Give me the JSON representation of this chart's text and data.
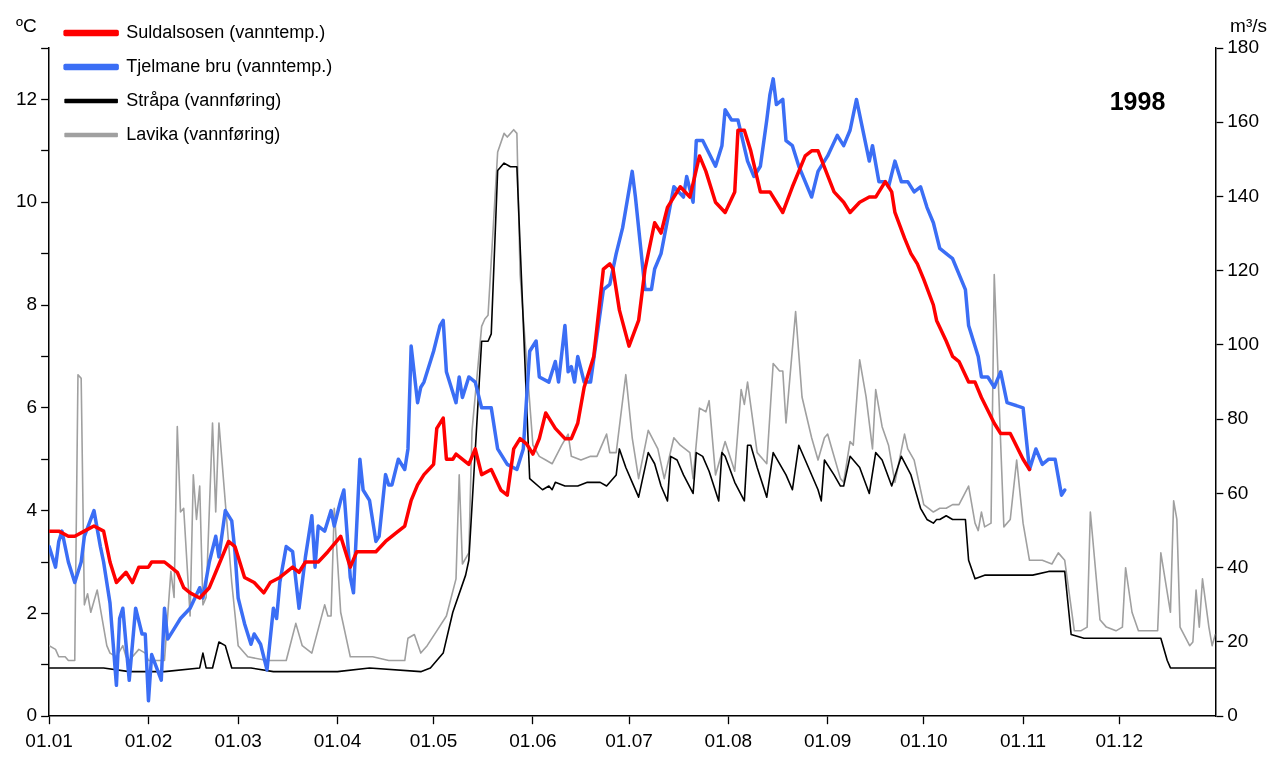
{
  "chart_data": {
    "type": "line",
    "ylabel": "ºC",
    "y2label": "m³/s",
    "annotations": [
      "1998"
    ],
    "legend": "top left",
    "marker": "none",
    "line_style": "solid",
    "grid": false,
    "xlim": [
      "--01-01",
      "--12-31"
    ],
    "xticks": [
      {
        "value": "--01-01",
        "label": "01.01"
      },
      {
        "value": "--02-01",
        "label": "01.02"
      },
      {
        "value": "--03-01",
        "label": "01.03"
      },
      {
        "value": "--04-01",
        "label": "01.04"
      },
      {
        "value": "--05-01",
        "label": "01.05"
      },
      {
        "value": "--06-01",
        "label": "01.06"
      },
      {
        "value": "--07-01",
        "label": "01.07"
      },
      {
        "value": "--08-01",
        "label": "01.08"
      },
      {
        "value": "--09-01",
        "label": "01.09"
      },
      {
        "value": "--10-01",
        "label": "01.10"
      },
      {
        "value": "--11-01",
        "label": "01.11"
      },
      {
        "value": "--12-01",
        "label": "01.12"
      }
    ],
    "ylim": [
      0,
      13
    ],
    "yticks": [
      0,
      {
        "value": 1,
        "label": null
      },
      2,
      {
        "value": 3,
        "label": null
      },
      4,
      {
        "value": 5,
        "label": null
      },
      6,
      {
        "value": 7,
        "label": null
      },
      8,
      {
        "value": 9,
        "label": null
      },
      10,
      {
        "value": 11,
        "label": null
      },
      12,
      {
        "value": 13,
        "label": null
      }
    ],
    "y2lim": [
      0,
      180
    ],
    "y2ticks": [
      0,
      20,
      40,
      60,
      80,
      100,
      120,
      140,
      160,
      180
    ],
    "series": [
      {
        "name": "Suldalsosen (vanntemp.)",
        "color": "#ff0000",
        "x": [
          "--01-01",
          "--01-04",
          "--01-07",
          "--01-09",
          "--01-12",
          "--01-15",
          "--01-18",
          "--01-20",
          "--01-22",
          "--01-25",
          "--01-27",
          "--01-29",
          "--02-01",
          "--02-02",
          "--02-06",
          "--02-08",
          "--02-10",
          "--02-12",
          "--02-14",
          "--02-17",
          "--02-20",
          "--02-22",
          "--02-26",
          "--02-28",
          "--03-03",
          "--03-06",
          "--03-09",
          "--03-11",
          "--03-14",
          "--03-18",
          "--03-20",
          "--03-22",
          "--03-26",
          "--03-29",
          "--04-02",
          "--04-05",
          "--04-07",
          "--04-11",
          "--04-13",
          "--04-16",
          "--04-20",
          "--04-22",
          "--04-24",
          "--04-26",
          "--04-28",
          "--05-01",
          "--05-02",
          "--05-04",
          "--05-05",
          "--05-07",
          "--05-08",
          "--05-12",
          "--05-14",
          "--05-16",
          "--05-19",
          "--05-22",
          "--05-24",
          "--05-26",
          "--05-28",
          "--05-30",
          "--06-01",
          "--06-03",
          "--06-05",
          "--06-08",
          "--06-11",
          "--06-13",
          "--06-15",
          "--06-17",
          "--06-20",
          "--06-23",
          "--06-25",
          "--06-26",
          "--06-28",
          "--07-01",
          "--07-04",
          "--07-06",
          "--07-09",
          "--07-11",
          "--07-13",
          "--07-17",
          "--07-20",
          "--07-23",
          "--07-25",
          "--07-28",
          "--07-31",
          "--08-03",
          "--08-04",
          "--08-06",
          "--08-08",
          "--08-11",
          "--08-14",
          "--08-18",
          "--08-21",
          "--08-25",
          "--08-27",
          "--08-29",
          "--09-03",
          "--09-06",
          "--09-08",
          "--09-11",
          "--09-14",
          "--09-16",
          "--09-17",
          "--09-19",
          "--09-21",
          "--09-22",
          "--09-25",
          "--09-27",
          "--09-29",
          "--10-01",
          "--10-04",
          "--10-05",
          "--10-08",
          "--10-10",
          "--10-12",
          "--10-15",
          "--10-17",
          "--10-19",
          "--10-23",
          "--10-25",
          "--10-28",
          "--11-01",
          "--11-03"
        ],
        "values": [
          3.6,
          3.6,
          3.5,
          3.5,
          3.6,
          3.7,
          3.6,
          3.0,
          2.6,
          2.8,
          2.6,
          2.9,
          2.9,
          3.0,
          3.0,
          2.9,
          2.8,
          2.5,
          2.4,
          2.3,
          2.5,
          2.8,
          3.4,
          3.3,
          2.7,
          2.6,
          2.4,
          2.6,
          2.7,
          2.9,
          2.8,
          3.0,
          3.0,
          3.2,
          3.5,
          2.9,
          3.2,
          3.2,
          3.2,
          3.4,
          3.6,
          3.7,
          4.2,
          4.5,
          4.7,
          4.9,
          5.6,
          5.8,
          5.0,
          5.0,
          5.1,
          4.9,
          5.2,
          4.7,
          4.8,
          4.4,
          4.3,
          5.2,
          5.4,
          5.3,
          5.1,
          5.4,
          5.9,
          5.6,
          5.4,
          5.4,
          5.7,
          6.4,
          7.0,
          8.7,
          8.8,
          8.7,
          7.9,
          7.2,
          7.7,
          8.7,
          9.6,
          9.4,
          9.9,
          10.3,
          10.1,
          10.9,
          10.6,
          10.0,
          9.8,
          10.2,
          11.4,
          11.4,
          11.0,
          10.2,
          10.2,
          9.8,
          10.3,
          10.9,
          11.0,
          11.0,
          10.2,
          10.0,
          9.8,
          10.0,
          10.1,
          10.1,
          10.2,
          10.4,
          10.2,
          9.8,
          9.3,
          9.0,
          8.8,
          8.5,
          8.0,
          7.7,
          7.3,
          7.0,
          6.9,
          6.5,
          6.5,
          6.2,
          5.7,
          5.5,
          5.5,
          5.0,
          4.8
        ]
      },
      {
        "name": "Tjelmane bru (vanntemp.)",
        "color": "#3b6ef5",
        "x": [
          "--01-01",
          "--01-03",
          "--01-04",
          "--01-05",
          "--01-07",
          "--01-09",
          "--01-11",
          "--01-12",
          "--01-15",
          "--01-17",
          "--01-18",
          "--01-20",
          "--01-22",
          "--01-23",
          "--01-24",
          "--01-26",
          "--01-28",
          "--01-30",
          "--01-31",
          "--02-01",
          "--02-02",
          "--02-05",
          "--02-06",
          "--02-07",
          "--02-09",
          "--02-11",
          "--02-14",
          "--02-17",
          "--02-18",
          "--02-20",
          "--02-22",
          "--02-23",
          "--02-25",
          "--02-27",
          "--02-28",
          "--03-01",
          "--03-03",
          "--03-05",
          "--03-06",
          "--03-08",
          "--03-10",
          "--03-12",
          "--03-13",
          "--03-14",
          "--03-16",
          "--03-18",
          "--03-20",
          "--03-22",
          "--03-24",
          "--03-25",
          "--03-26",
          "--03-28",
          "--03-30",
          "--03-31",
          "--04-02",
          "--04-03",
          "--04-05",
          "--04-06",
          "--04-08",
          "--04-09",
          "--04-11",
          "--04-13",
          "--04-14",
          "--04-16",
          "--04-17",
          "--04-18",
          "--04-20",
          "--04-22",
          "--04-23",
          "--04-24",
          "--04-26",
          "--04-27",
          "--04-28",
          "--05-01",
          "--05-03",
          "--05-04",
          "--05-05",
          "--05-08",
          "--05-09",
          "--05-10",
          "--05-12",
          "--05-14",
          "--05-16",
          "--05-19",
          "--05-21",
          "--05-24",
          "--05-27",
          "--05-29",
          "--05-31",
          "--06-02",
          "--06-03",
          "--06-06",
          "--06-08",
          "--06-09",
          "--06-11",
          "--06-12",
          "--06-13",
          "--06-14",
          "--06-15",
          "--06-17",
          "--06-19",
          "--06-23",
          "--06-25",
          "--06-27",
          "--06-29",
          "--07-02",
          "--07-03",
          "--07-06",
          "--07-08",
          "--07-09",
          "--07-11",
          "--07-15",
          "--07-18",
          "--07-19",
          "--07-21",
          "--07-22",
          "--07-24",
          "--07-28",
          "--07-30",
          "--07-31",
          "--08-02",
          "--08-04",
          "--08-07",
          "--08-09",
          "--08-11",
          "--08-13",
          "--08-14",
          "--08-15",
          "--08-16",
          "--08-18",
          "--08-19",
          "--08-21",
          "--08-23",
          "--08-27",
          "--08-29",
          "--09-01",
          "--09-04",
          "--09-06",
          "--09-08",
          "--09-10",
          "--09-14",
          "--09-15",
          "--09-17",
          "--09-19",
          "--09-20",
          "--09-22",
          "--09-24",
          "--09-26",
          "--09-28",
          "--09-30",
          "--10-02",
          "--10-04",
          "--10-06",
          "--10-10",
          "--10-14",
          "--10-15",
          "--10-18",
          "--10-19",
          "--10-21",
          "--10-23",
          "--10-25",
          "--10-27",
          "--11-01",
          "--11-03",
          "--11-05",
          "--11-07",
          "--11-09",
          "--11-11",
          "--11-13",
          "--11-14"
        ],
        "values": [
          3.3,
          2.9,
          3.4,
          3.6,
          3.0,
          2.6,
          3.0,
          3.5,
          4.0,
          3.3,
          3.0,
          2.2,
          0.6,
          1.9,
          2.1,
          0.7,
          2.1,
          1.6,
          1.6,
          0.3,
          1.2,
          0.7,
          2.1,
          1.5,
          1.7,
          1.9,
          2.1,
          2.5,
          2.3,
          3.0,
          3.5,
          3.1,
          4.0,
          3.8,
          3.2,
          2.3,
          1.8,
          1.4,
          1.6,
          1.4,
          0.9,
          2.1,
          1.9,
          2.6,
          3.3,
          3.2,
          2.1,
          3.1,
          3.9,
          2.9,
          3.7,
          3.6,
          4.0,
          3.7,
          4.2,
          4.4,
          2.7,
          2.4,
          5.0,
          4.4,
          4.2,
          3.4,
          3.5,
          4.7,
          4.5,
          4.5,
          5.0,
          4.8,
          5.2,
          7.2,
          6.1,
          6.4,
          6.5,
          7.1,
          7.6,
          7.7,
          6.7,
          6.1,
          6.6,
          6.2,
          6.6,
          6.5,
          6.0,
          6.0,
          5.2,
          4.9,
          4.8,
          5.2,
          7.1,
          7.3,
          6.6,
          6.5,
          6.9,
          6.5,
          7.6,
          6.7,
          6.8,
          6.5,
          7.0,
          6.5,
          6.5,
          8.3,
          8.4,
          9.0,
          9.5,
          10.6,
          10.1,
          8.3,
          8.3,
          8.7,
          9.0,
          10.3,
          10.1,
          10.5,
          10.0,
          11.2,
          11.2,
          10.7,
          11.1,
          11.8,
          11.6,
          11.6,
          10.8,
          10.5,
          10.7,
          11.6,
          12.1,
          12.4,
          11.9,
          12.0,
          11.2,
          11.1,
          10.7,
          10.1,
          10.6,
          10.9,
          11.3,
          11.1,
          11.4,
          12.0,
          10.8,
          11.1,
          10.4,
          10.4,
          10.3,
          10.8,
          10.4,
          10.4,
          10.2,
          10.3,
          9.9,
          9.6,
          9.1,
          8.9,
          8.3,
          7.6,
          7.0,
          6.6,
          6.6,
          6.4,
          6.7,
          6.1,
          6.0,
          4.8,
          5.2,
          4.9,
          5.0,
          5.0,
          4.3,
          4.4
        ]
      },
      {
        "name": "Stråpa (vannføring)",
        "color": "#000000",
        "axis": "y2",
        "x": [
          "--01-01",
          "--01-18",
          "--01-26",
          "--02-06",
          "--02-17",
          "--02-18",
          "--02-19",
          "--02-21",
          "--02-23",
          "--02-25",
          "--02-27",
          "--03-05",
          "--03-12",
          "--04-01",
          "--04-11",
          "--04-27",
          "--04-30",
          "--05-04",
          "--05-07",
          "--05-11",
          "--05-12",
          "--05-16",
          "--05-18",
          "--05-19",
          "--05-21",
          "--05-23",
          "--05-25",
          "--05-27",
          "--05-31",
          "--06-04",
          "--06-06",
          "--06-07",
          "--06-08",
          "--06-11",
          "--06-13",
          "--06-15",
          "--06-18",
          "--06-22",
          "--06-24",
          "--06-27",
          "--06-28",
          "--06-30",
          "--07-02",
          "--07-04",
          "--07-07",
          "--07-09",
          "--07-11",
          "--07-13",
          "--07-14",
          "--07-16",
          "--07-18",
          "--07-21",
          "--07-22",
          "--07-24",
          "--07-26",
          "--07-29",
          "--07-30",
          "--07-31",
          "--08-03",
          "--08-06",
          "--08-07",
          "--08-08",
          "--08-10",
          "--08-13",
          "--08-15",
          "--08-19",
          "--08-21",
          "--08-23",
          "--08-25",
          "--08-29",
          "--08-30",
          "--08-31",
          "--09-03",
          "--09-05",
          "--09-06",
          "--09-08",
          "--09-11",
          "--09-14",
          "--09-16",
          "--09-18",
          "--09-21",
          "--09-24",
          "--09-27",
          "--09-30",
          "--10-02",
          "--10-04",
          "--10-05",
          "--10-06",
          "--10-08",
          "--10-10",
          "--10-12",
          "--10-14",
          "--10-15",
          "--10-17",
          "--10-20",
          "--10-22",
          "--10-27",
          "--11-01",
          "--11-04",
          "--11-09",
          "--11-13",
          "--11-14",
          "--11-16",
          "--11-20",
          "--11-24",
          "--11-26",
          "--12-01",
          "--12-09",
          "--12-14",
          "--12-16",
          "--12-17",
          "--12-20",
          "--12-27",
          "--12-29",
          "--12-31"
        ],
        "values": [
          13,
          13,
          12,
          12,
          13,
          17,
          13,
          13,
          20,
          19,
          13,
          13,
          12,
          12,
          13,
          12,
          13,
          17,
          28,
          38,
          42,
          101,
          101,
          103,
          147,
          149,
          148,
          148,
          64,
          61,
          62,
          61,
          63,
          62,
          62,
          62,
          63,
          63,
          62,
          65,
          72,
          67,
          63,
          59,
          71,
          68,
          62,
          58,
          70,
          69,
          65,
          60,
          71,
          70,
          66,
          58,
          71,
          70,
          63,
          58,
          73,
          73,
          67,
          59,
          71,
          65,
          61,
          73,
          69,
          61,
          58,
          69,
          65,
          62,
          62,
          70,
          67,
          60,
          71,
          69,
          62,
          70,
          65,
          56,
          53,
          52,
          53,
          53,
          54,
          53,
          53,
          53,
          42,
          37,
          38,
          38,
          38,
          38,
          38,
          39,
          39,
          39,
          22,
          21,
          21,
          21,
          21,
          21,
          21,
          15,
          13,
          13,
          13,
          13,
          13
        ]
      },
      {
        "name": "Lavika (vannføring)",
        "color": "#a0a0a0",
        "axis": "y2",
        "x": [
          "--01-01",
          "--01-03",
          "--01-04",
          "--01-06",
          "--01-07",
          "--01-09",
          "--01-10",
          "--01-11",
          "--01-12",
          "--01-13",
          "--01-14",
          "--01-16",
          "--01-17",
          "--01-19",
          "--01-20",
          "--01-22",
          "--01-24",
          "--01-25",
          "--01-26",
          "--01-29",
          "--01-31",
          "--02-01",
          "--02-03",
          "--02-06",
          "--02-08",
          "--02-09",
          "--02-10",
          "--02-11",
          "--02-12",
          "--02-14",
          "--02-15",
          "--02-16",
          "--02-17",
          "--02-18",
          "--02-19",
          "--02-21",
          "--02-22",
          "--02-23",
          "--02-27",
          "--03-01",
          "--03-04",
          "--03-10",
          "--03-16",
          "--03-19",
          "--03-21",
          "--03-24",
          "--03-28",
          "--03-29",
          "--03-30",
          "--03-31",
          "--04-02",
          "--04-05",
          "--04-09",
          "--04-12",
          "--04-17",
          "--04-22",
          "--04-23",
          "--04-25",
          "--04-27",
          "--04-29",
          "--05-02",
          "--05-05",
          "--05-08",
          "--05-09",
          "--05-10",
          "--05-12",
          "--05-13",
          "--05-16",
          "--05-17",
          "--05-18",
          "--05-21",
          "--05-23",
          "--05-24",
          "--05-26",
          "--05-27",
          "--05-28",
          "--06-01",
          "--06-03",
          "--06-05",
          "--06-07",
          "--06-10",
          "--06-12",
          "--06-13",
          "--06-16",
          "--06-19",
          "--06-21",
          "--06-24",
          "--06-25",
          "--06-27",
          "--06-30",
          "--07-02",
          "--07-04",
          "--07-07",
          "--07-10",
          "--07-12",
          "--07-15",
          "--07-17",
          "--07-20",
          "--07-21",
          "--07-23",
          "--07-25",
          "--07-26",
          "--07-28",
          "--07-31",
          "--08-03",
          "--08-05",
          "--08-06",
          "--08-07",
          "--08-10",
          "--08-12",
          "--08-13",
          "--08-15",
          "--08-17",
          "--08-18",
          "--08-19",
          "--08-22",
          "--08-24",
          "--08-27",
          "--08-29",
          "--08-31",
          "--09-01",
          "--09-02",
          "--09-05",
          "--09-06",
          "--09-08",
          "--09-09",
          "--09-11",
          "--09-13",
          "--09-15",
          "--09-16",
          "--09-18",
          "--09-20",
          "--09-22",
          "--09-25",
          "--09-26",
          "--09-28",
          "--10-01",
          "--10-04",
          "--10-06",
          "--10-08",
          "--10-10",
          "--10-12",
          "--10-15",
          "--10-17",
          "--10-18",
          "--10-19",
          "--10-20",
          "--10-22",
          "--10-23",
          "--10-26",
          "--10-28",
          "--10-30",
          "--11-01",
          "--11-03",
          "--11-07",
          "--11-10",
          "--11-12",
          "--11-14",
          "--11-17",
          "--11-19",
          "--11-21",
          "--11-22",
          "--11-25",
          "--11-27",
          "--11-30",
          "--12-02",
          "--12-03",
          "--12-05",
          "--12-07",
          "--12-12",
          "--12-13",
          "--12-14",
          "--12-17",
          "--12-18",
          "--12-19",
          "--12-20",
          "--12-23",
          "--12-24",
          "--12-25",
          "--12-26",
          "--12-27",
          "--12-29",
          "--12-30",
          "--12-31"
        ],
        "values": [
          19,
          18,
          16,
          16,
          15,
          15,
          92,
          91,
          30,
          33,
          28,
          34,
          29,
          19,
          17,
          16,
          19,
          16,
          15,
          18,
          17,
          15,
          15,
          15,
          39,
          32,
          78,
          55,
          56,
          27,
          65,
          53,
          62,
          30,
          32,
          79,
          55,
          79,
          36,
          19,
          16,
          15,
          15,
          25,
          19,
          17,
          30,
          27,
          27,
          56,
          28,
          16,
          16,
          16,
          15,
          15,
          21,
          22,
          17,
          19,
          23,
          27,
          37,
          65,
          41,
          44,
          77,
          105,
          107,
          108,
          152,
          157,
          156,
          158,
          157,
          119,
          73,
          70,
          69,
          68,
          73,
          76,
          70,
          69,
          70,
          70,
          76,
          71,
          71,
          92,
          75,
          64,
          77,
          72,
          64,
          75,
          73,
          71,
          64,
          83,
          82,
          85,
          65,
          74,
          66,
          88,
          84,
          90,
          71,
          69,
          68,
          95,
          93,
          93,
          79,
          109,
          86,
          75,
          69,
          75,
          76,
          73,
          64,
          63,
          74,
          73,
          96,
          86,
          72,
          88,
          78,
          73,
          63,
          76,
          72,
          69,
          57,
          55,
          56,
          56,
          57,
          57,
          62,
          52,
          50,
          55,
          51,
          52,
          119,
          51,
          53,
          69,
          52,
          42,
          42,
          41,
          44,
          42,
          23,
          23,
          24,
          55,
          26,
          24,
          23,
          24,
          40,
          28,
          23,
          23,
          23,
          44,
          28,
          58,
          53,
          24,
          19,
          20,
          34,
          24,
          37,
          24,
          19,
          22
        ]
      }
    ]
  }
}
